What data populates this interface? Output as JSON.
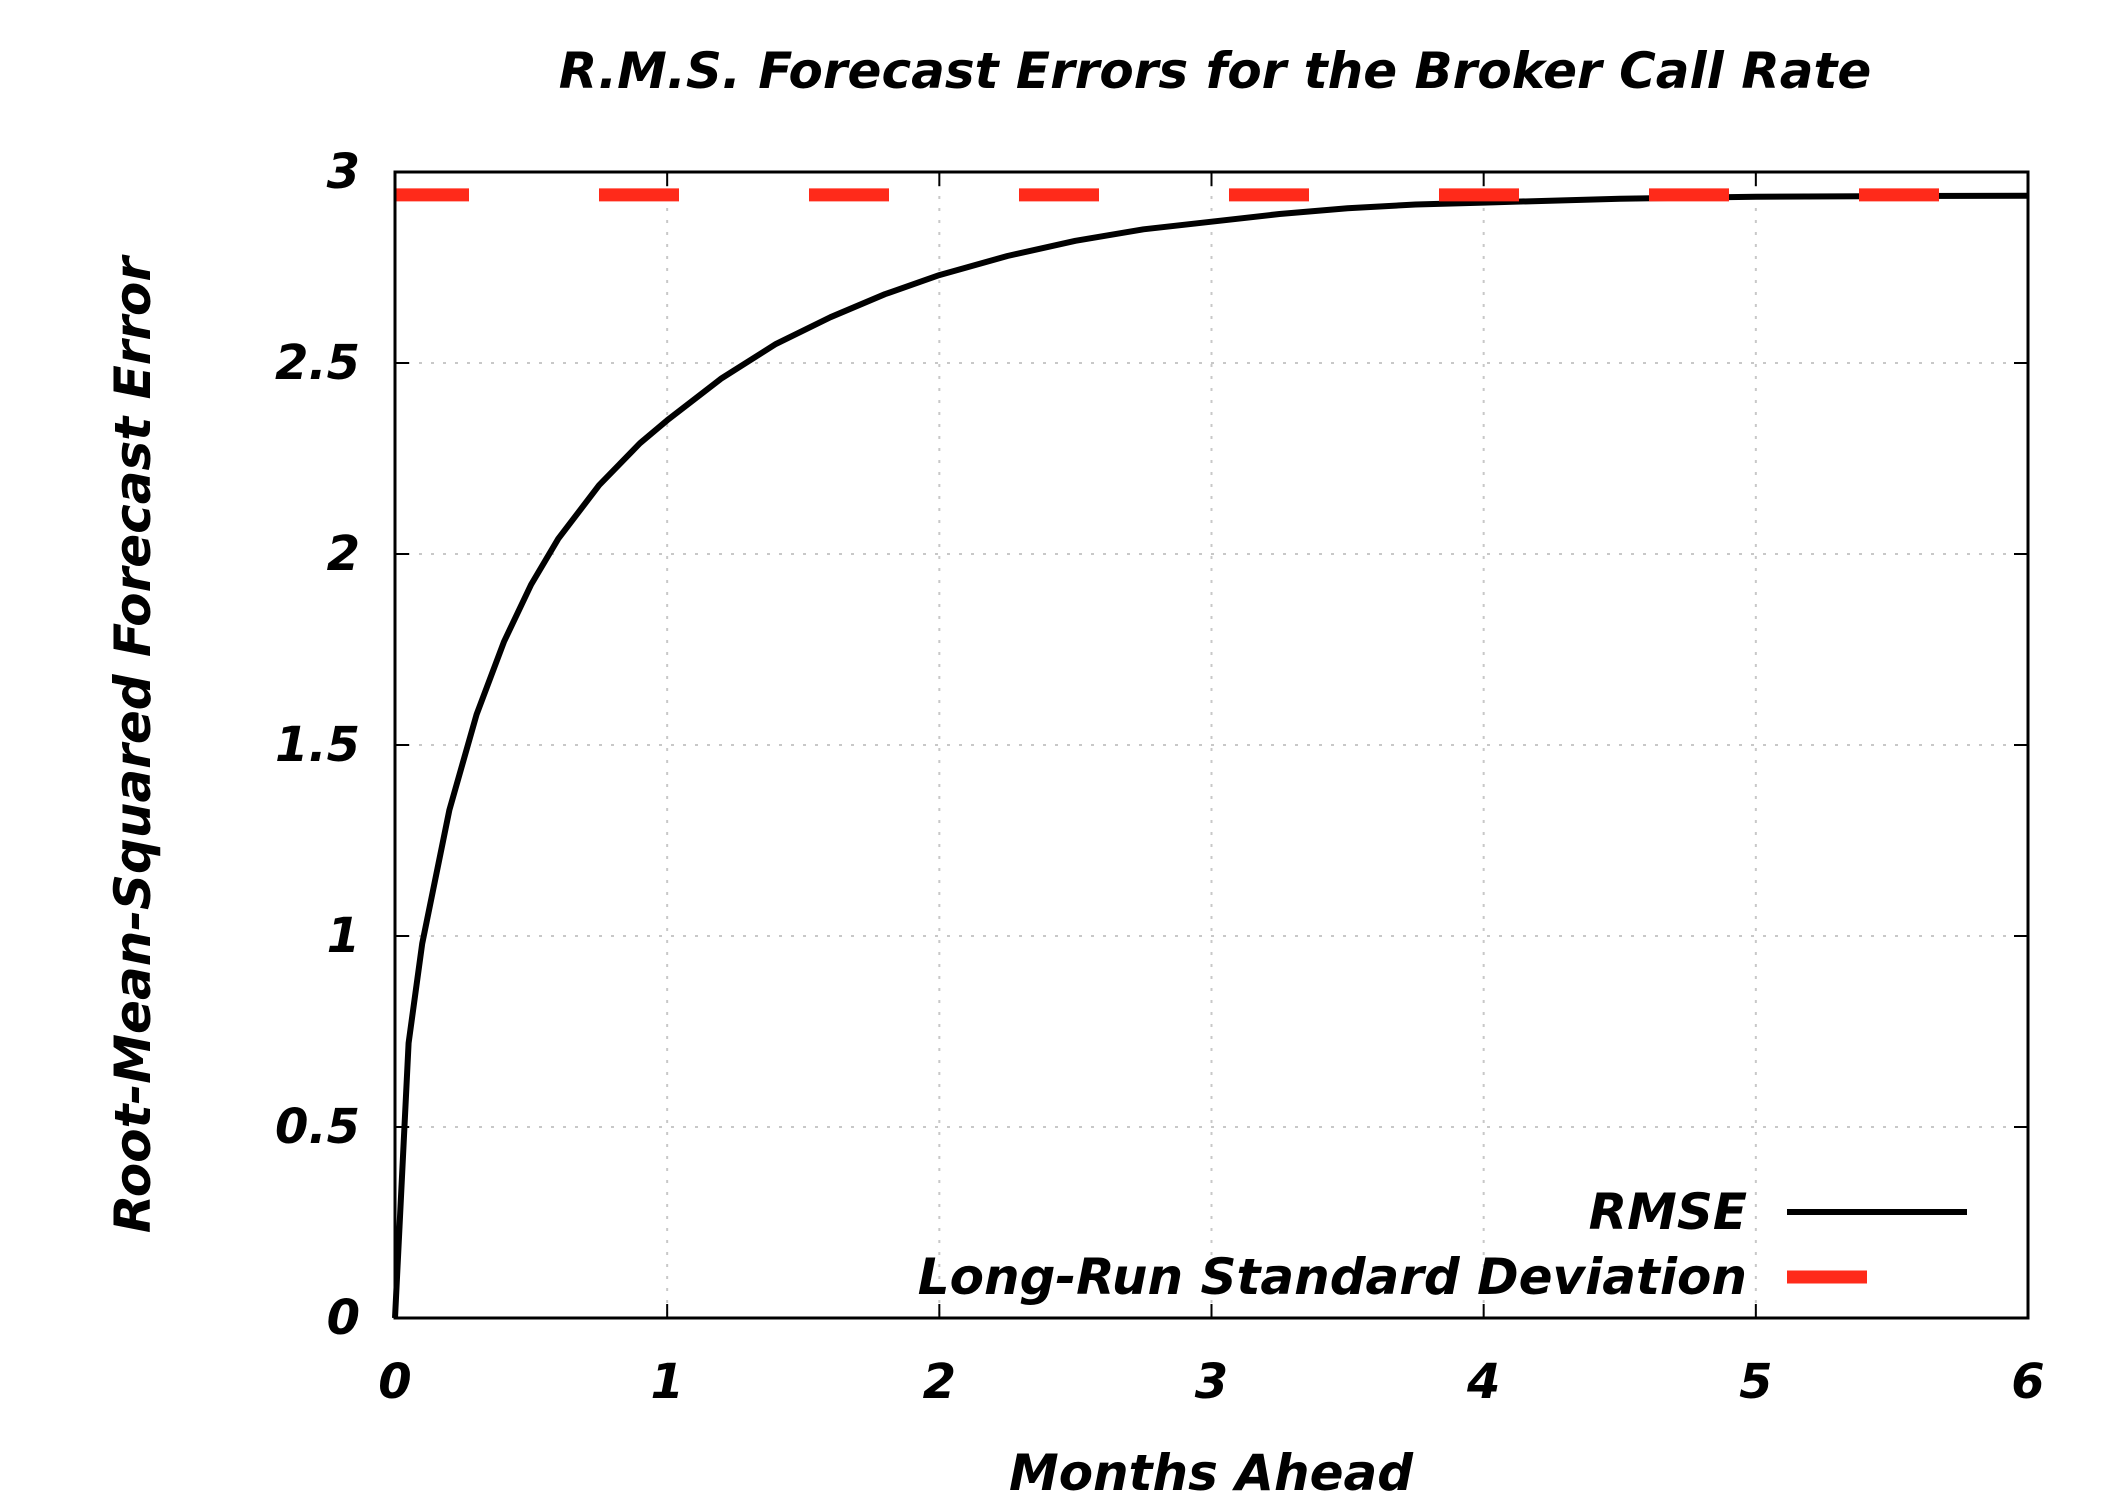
{
  "chart_data": {
    "type": "line",
    "title": "R.M.S. Forecast Errors for the Broker Call Rate",
    "xlabel": "Months Ahead",
    "ylabel": "Root-Mean-Squared Forecast Error",
    "xlim": [
      0,
      6
    ],
    "ylim": [
      0,
      3
    ],
    "x_ticks": [
      "0",
      "1",
      "2",
      "3",
      "4",
      "5",
      "6"
    ],
    "y_ticks": [
      "0",
      "0.5",
      "1",
      "1.5",
      "2",
      "2.5",
      "3"
    ],
    "grid": true,
    "legend_position": "bottom-right",
    "series": [
      {
        "name": "RMSE",
        "style": "solid",
        "color": "#000000",
        "x": [
          0,
          0.05,
          0.1,
          0.2,
          0.3,
          0.4,
          0.5,
          0.6,
          0.75,
          0.9,
          1.0,
          1.2,
          1.4,
          1.6,
          1.8,
          2.0,
          2.25,
          2.5,
          2.75,
          3.0,
          3.25,
          3.5,
          3.75,
          4.0,
          4.5,
          5.0,
          5.5,
          6.0
        ],
        "values": [
          0.0,
          0.72,
          0.98,
          1.33,
          1.58,
          1.77,
          1.92,
          2.04,
          2.18,
          2.29,
          2.35,
          2.46,
          2.55,
          2.62,
          2.68,
          2.73,
          2.78,
          2.82,
          2.85,
          2.87,
          2.89,
          2.905,
          2.915,
          2.92,
          2.93,
          2.935,
          2.937,
          2.938
        ]
      },
      {
        "name": "Long-Run Standard Deviation",
        "style": "dashed",
        "color": "#ff2a1a",
        "x": [
          0,
          6
        ],
        "values": [
          2.94,
          2.94
        ]
      }
    ]
  }
}
